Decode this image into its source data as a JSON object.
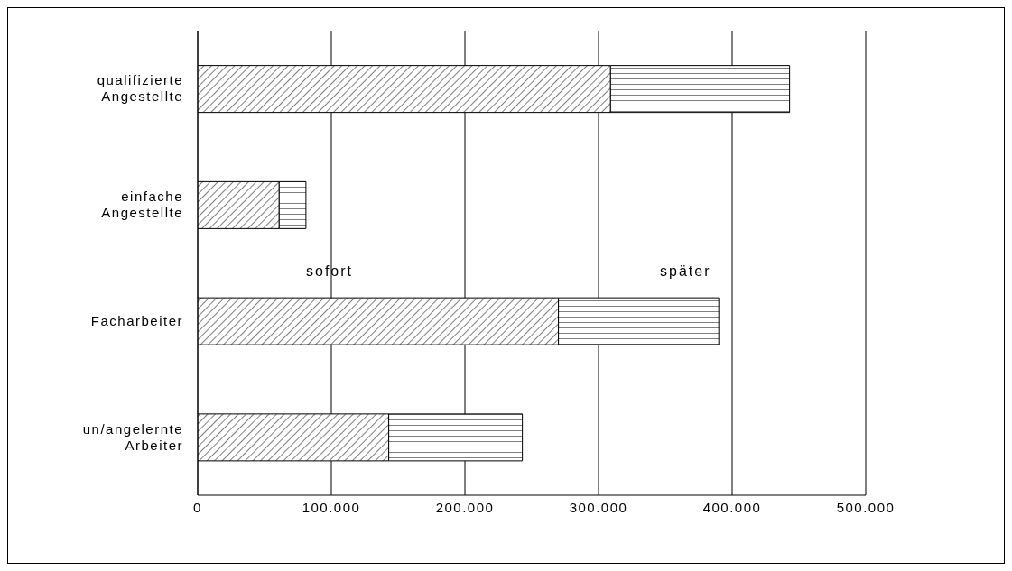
{
  "chart_data": {
    "type": "bar",
    "orientation": "horizontal",
    "stacked": true,
    "categories": [
      "qualifizierte Angestellte",
      "einfache Angestellte",
      "Facharbeiter",
      "un/angelernte Arbeiter"
    ],
    "series": [
      {
        "name": "sofort",
        "color": "#000000",
        "values": [
          309000,
          61000,
          270000,
          143000
        ]
      },
      {
        "name": "später",
        "color": "#000000",
        "values": [
          134000,
          20000,
          120000,
          100000
        ]
      }
    ],
    "xlim": [
      0,
      500000
    ],
    "xticks": [
      {
        "value": 0,
        "label": "0"
      },
      {
        "value": 100000,
        "label": "100.000"
      },
      {
        "value": 200000,
        "label": "200.000"
      },
      {
        "value": 300000,
        "label": "300.000"
      },
      {
        "value": 400000,
        "label": "400.000"
      },
      {
        "value": 500000,
        "label": "500.000"
      }
    ],
    "grid": "x",
    "legend": false
  }
}
